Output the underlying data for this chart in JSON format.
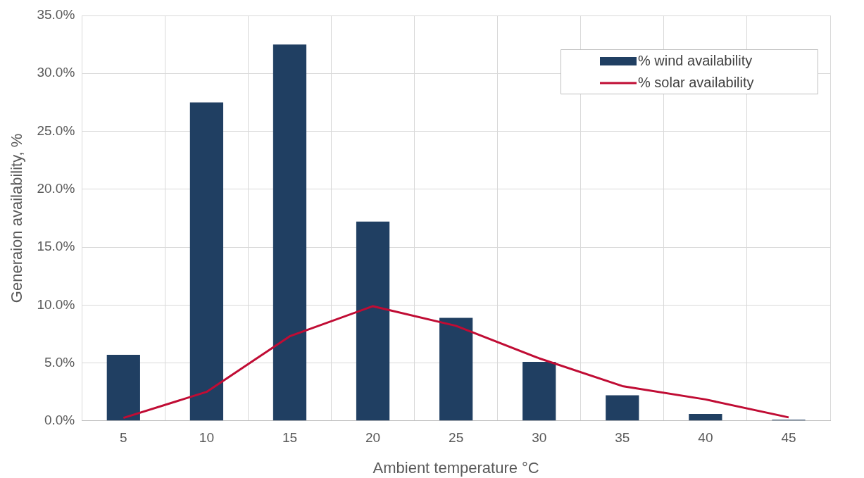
{
  "chart_data": {
    "type": "bar",
    "xlabel": "Ambient temperature °C",
    "ylabel": "Generaion availability, %",
    "categories": [
      "5",
      "10",
      "15",
      "20",
      "25",
      "30",
      "35",
      "40",
      "45"
    ],
    "series": [
      {
        "name": "% wind availability",
        "color": "#203f62",
        "values": [
          5.7,
          27.5,
          32.5,
          17.2,
          8.9,
          5.1,
          2.2,
          0.6,
          0.1
        ]
      },
      {
        "name": "% solar availability",
        "type": "line",
        "color": "#c00c34",
        "values": [
          0.25,
          2.5,
          7.3,
          9.9,
          8.2,
          5.4,
          3.0,
          1.85,
          0.3
        ]
      }
    ],
    "ylim": [
      0,
      35
    ],
    "yticks": [
      {
        "value": 0,
        "label": "0.0%"
      },
      {
        "value": 5,
        "label": "5.0%"
      },
      {
        "value": 10,
        "label": "10.0%"
      },
      {
        "value": 15,
        "label": "15.0%"
      },
      {
        "value": 20,
        "label": "20.0%"
      },
      {
        "value": 25,
        "label": "25.0%"
      },
      {
        "value": 30,
        "label": "30.0%"
      },
      {
        "value": 35,
        "label": "35.0%"
      }
    ],
    "grid": true,
    "legend": "top right",
    "marker": "none",
    "line_style": "solid"
  }
}
